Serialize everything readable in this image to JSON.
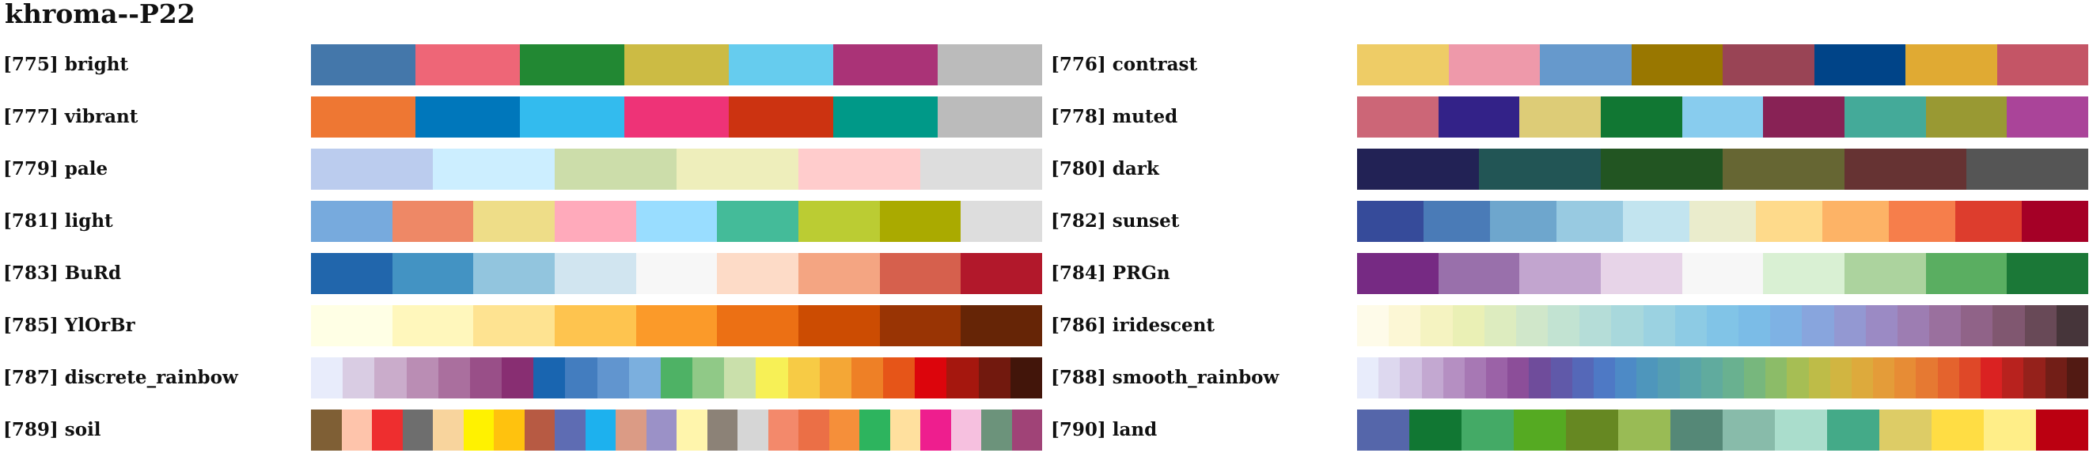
{
  "title": "khroma--P22",
  "palettes": [
    {
      "label": "[775] bright",
      "colors": [
        "#4477AA",
        "#EE6677",
        "#228833",
        "#CCBB44",
        "#66CCEE",
        "#AA3377",
        "#BBBBBB"
      ]
    },
    {
      "label": "[776] contrast",
      "colors": [
        "#EECC66",
        "#EE99AA",
        "#6699CC",
        "#997700",
        "#994455",
        "#004488",
        "#E0AA33",
        "#C45566"
      ]
    },
    {
      "label": "[777] vibrant",
      "colors": [
        "#EE7733",
        "#0077BB",
        "#33BBEE",
        "#EE3377",
        "#CC3311",
        "#009988",
        "#BBBBBB"
      ]
    },
    {
      "label": "[778] muted",
      "colors": [
        "#CC6677",
        "#332288",
        "#DDCC77",
        "#117733",
        "#88CCEE",
        "#882255",
        "#44AA99",
        "#999933",
        "#AA4499"
      ]
    },
    {
      "label": "[779] pale",
      "colors": [
        "#BBCCEE",
        "#CCEEFF",
        "#CCDDAA",
        "#EEEEBB",
        "#FFCCCC",
        "#DDDDDD"
      ]
    },
    {
      "label": "[780] dark",
      "colors": [
        "#222255",
        "#225555",
        "#225522",
        "#666633",
        "#663333",
        "#555555"
      ]
    },
    {
      "label": "[781] light",
      "colors": [
        "#77AADD",
        "#EE8866",
        "#EEDD88",
        "#FFAABB",
        "#99DDFF",
        "#44BB99",
        "#BBCC33",
        "#AAAA00",
        "#DDDDDD"
      ]
    },
    {
      "label": "[782] sunset",
      "colors": [
        "#364B9A",
        "#4A7BB7",
        "#6EA6CD",
        "#98CAE1",
        "#C2E4EF",
        "#EAECCC",
        "#FEDA8B",
        "#FDB366",
        "#F67E4B",
        "#DD3D2D",
        "#A50026"
      ]
    },
    {
      "label": "[783] BuRd",
      "colors": [
        "#2166AC",
        "#4393C3",
        "#92C5DE",
        "#D1E5F0",
        "#F7F7F7",
        "#FDDBC7",
        "#F4A582",
        "#D6604D",
        "#B2182B"
      ]
    },
    {
      "label": "[784] PRGn",
      "colors": [
        "#762A83",
        "#9970AB",
        "#C2A5CF",
        "#E7D4E8",
        "#F7F7F7",
        "#D9F0D3",
        "#ACD39E",
        "#5AAE61",
        "#1B7837"
      ]
    },
    {
      "label": "[785] YlOrBr",
      "colors": [
        "#FFFFE5",
        "#FFF7BC",
        "#FEE391",
        "#FEC44F",
        "#FB9A29",
        "#EC7014",
        "#CC4C02",
        "#993404",
        "#662506"
      ]
    },
    {
      "label": "[786] iridescent",
      "colors": [
        "#FEFBE9",
        "#FCF7D5",
        "#F5F3C1",
        "#EAF0B5",
        "#DDECBF",
        "#D0E7CA",
        "#C2E3D2",
        "#B5DDD8",
        "#A8D8DC",
        "#9BD2E1",
        "#8DCBE4",
        "#81C4E7",
        "#7BBCE7",
        "#7EB2E4",
        "#88A5DD",
        "#9398D2",
        "#9B8AC4",
        "#9D7DB2",
        "#9A709E",
        "#906388",
        "#805770",
        "#684957",
        "#46353A"
      ]
    },
    {
      "label": "[787] discrete_rainbow",
      "colors": [
        "#E8ECFB",
        "#D9CCE3",
        "#CAACCB",
        "#BA8DB4",
        "#AA6F9E",
        "#994F88",
        "#882E72",
        "#1965B0",
        "#437DBF",
        "#6195CF",
        "#7BAFDE",
        "#4EB265",
        "#90C987",
        "#CAE0AB",
        "#F7F056",
        "#F7CB45",
        "#F4A736",
        "#EE8026",
        "#E65518",
        "#DC050C",
        "#A5170E",
        "#72190E",
        "#42150A"
      ]
    },
    {
      "label": "[788] smooth_rainbow",
      "colors": [
        "#E8ECFB",
        "#DDD8EF",
        "#D1C1E1",
        "#C3A8D1",
        "#B58FC2",
        "#A778B4",
        "#9B62A7",
        "#8C4E99",
        "#6F4C9B",
        "#6059A9",
        "#5568B8",
        "#4E79C5",
        "#4D8AC6",
        "#4E96BC",
        "#549EB3",
        "#59A5A9",
        "#60AB9E",
        "#69B190",
        "#77B77D",
        "#8CBC68",
        "#A6BE54",
        "#BEBC48",
        "#D1B541",
        "#DDAA3C",
        "#E49C39",
        "#E78C35",
        "#E67932",
        "#E4632D",
        "#DF4828",
        "#DA2222",
        "#B8221E",
        "#95211B",
        "#721E17",
        "#521A13"
      ]
    },
    {
      "label": "[789] soil",
      "colors": [
        "#7F5F35",
        "#FEC4AB",
        "#EE2E2F",
        "#6E6E6E",
        "#F8D49D",
        "#FFF200",
        "#FFC20E",
        "#B75A43",
        "#5E6CB3",
        "#1DB1EE",
        "#DB9B85",
        "#9B91C7",
        "#FFF5AC",
        "#8C8277",
        "#D6D6D6",
        "#F3896B",
        "#EB6F46",
        "#F58F3A",
        "#2DB45E",
        "#FFE09E",
        "#EE1E8E",
        "#F6C0DF",
        "#6C937B",
        "#A04377"
      ]
    },
    {
      "label": "[790] land",
      "colors": [
        "#5566AA",
        "#117733",
        "#44AA66",
        "#55AA22",
        "#668822",
        "#99BB55",
        "#558877",
        "#88BBAA",
        "#AADDCC",
        "#44AA88",
        "#DDCC66",
        "#FFDD44",
        "#FFEE88",
        "#BB0011"
      ]
    }
  ]
}
